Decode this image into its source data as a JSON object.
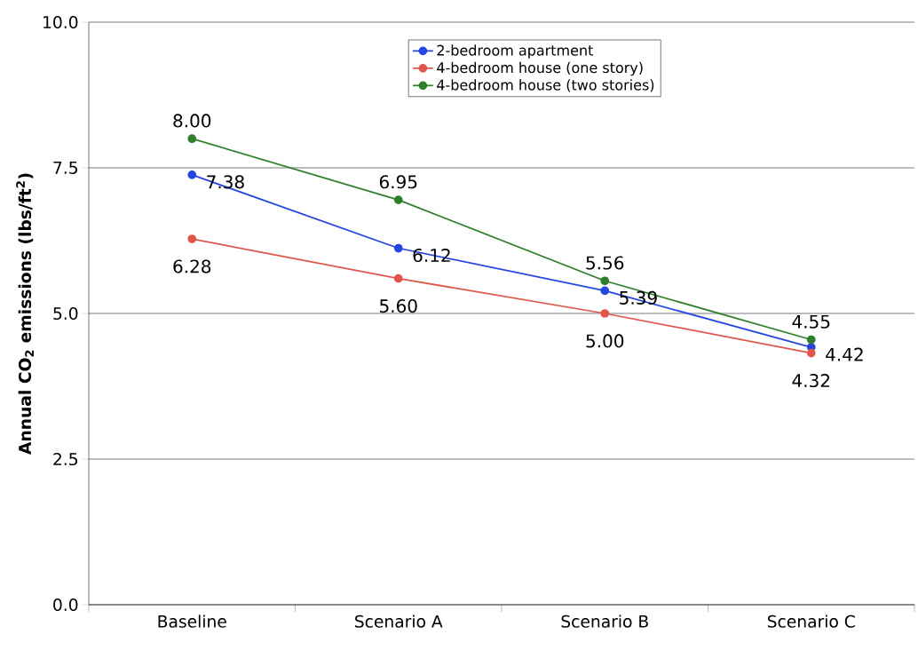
{
  "chart_data": {
    "type": "line",
    "ylabel": "Annual CO$_{2}$ emissions (lbs/ft$^{2}$)",
    "categories": [
      "Baseline",
      "Scenario A",
      "Scenario B",
      "Scenario C"
    ],
    "series": [
      {
        "name": "2-bedroom apartment",
        "color": "#2447e0",
        "values": [
          7.38,
          6.12,
          5.39,
          4.42
        ],
        "value_labels": [
          "7.38",
          "6.12",
          "5.39",
          "4.42"
        ]
      },
      {
        "name": "4-bedroom house (one story)",
        "color": "#e0564c",
        "values": [
          6.28,
          5.6,
          5.0,
          4.32
        ],
        "value_labels": [
          "6.28",
          "5.60",
          "5.00",
          "4.32"
        ]
      },
      {
        "name": "4-bedroom house (two stories)",
        "color": "#2e7f2a",
        "values": [
          8.0,
          6.95,
          5.56,
          4.55
        ],
        "value_labels": [
          "8.00",
          "6.95",
          "5.56",
          "4.55"
        ]
      }
    ],
    "ylim": [
      0,
      10
    ],
    "yticks": [
      {
        "value": 0,
        "label": "0.0"
      },
      2.5,
      {
        "value": 5,
        "label": "5.0"
      },
      7.5,
      {
        "value": 10,
        "label": "10.0"
      }
    ],
    "grid": "y",
    "legend": "top",
    "marker": "circle",
    "line_style": "solid"
  }
}
